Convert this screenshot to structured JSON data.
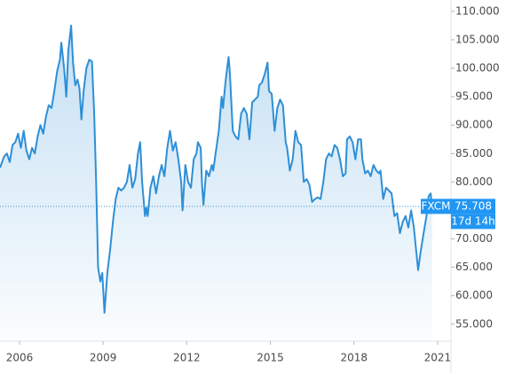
{
  "chart_data": {
    "type": "line",
    "x": [
      2005.3,
      2005.45,
      2005.55,
      2005.65,
      2005.75,
      2005.85,
      2005.95,
      2006.05,
      2006.15,
      2006.25,
      2006.35,
      2006.45,
      2006.55,
      2006.65,
      2006.75,
      2006.85,
      2006.95,
      2007.05,
      2007.15,
      2007.25,
      2007.35,
      2007.45,
      2007.5,
      2007.6,
      2007.68,
      2007.75,
      2007.85,
      2007.92,
      2008.0,
      2008.08,
      2008.15,
      2008.22,
      2008.3,
      2008.4,
      2008.5,
      2008.6,
      2008.68,
      2008.75,
      2008.82,
      2008.9,
      2008.97,
      2009.05,
      2009.15,
      2009.25,
      2009.35,
      2009.45,
      2009.55,
      2009.65,
      2009.75,
      2009.85,
      2009.95,
      2010.05,
      2010.15,
      2010.25,
      2010.33,
      2010.4,
      2010.5,
      2010.55,
      2010.6,
      2010.7,
      2010.8,
      2010.9,
      2011.0,
      2011.1,
      2011.2,
      2011.3,
      2011.4,
      2011.5,
      2011.6,
      2011.7,
      2011.8,
      2011.85,
      2011.95,
      2012.05,
      2012.15,
      2012.25,
      2012.35,
      2012.4,
      2012.5,
      2012.55,
      2012.6,
      2012.7,
      2012.8,
      2012.9,
      2012.95,
      2013.05,
      2013.15,
      2013.25,
      2013.3,
      2013.4,
      2013.5,
      2013.55,
      2013.65,
      2013.75,
      2013.85,
      2013.95,
      2014.05,
      2014.15,
      2014.25,
      2014.35,
      2014.45,
      2014.55,
      2014.6,
      2014.7,
      2014.8,
      2014.9,
      2014.95,
      2015.05,
      2015.15,
      2015.25,
      2015.35,
      2015.45,
      2015.55,
      2015.6,
      2015.7,
      2015.8,
      2015.9,
      2016.0,
      2016.1,
      2016.2,
      2016.3,
      2016.4,
      2016.5,
      2016.6,
      2016.7,
      2016.8,
      2016.9,
      2017.0,
      2017.1,
      2017.2,
      2017.3,
      2017.4,
      2017.5,
      2017.6,
      2017.7,
      2017.75,
      2017.85,
      2017.95,
      2018.05,
      2018.15,
      2018.25,
      2018.3,
      2018.4,
      2018.5,
      2018.6,
      2018.7,
      2018.8,
      2018.9,
      2018.95,
      2019.05,
      2019.15,
      2019.25,
      2019.35,
      2019.45,
      2019.55,
      2019.65,
      2019.75,
      2019.85,
      2019.95,
      2020.05,
      2020.15,
      2020.25,
      2020.3,
      2020.4,
      2020.5,
      2020.6,
      2020.68,
      2020.75,
      2020.8
    ],
    "series": [
      {
        "name": "FXCM",
        "color": "#2e8fd6",
        "values": [
          82.5,
          84.5,
          85,
          83.5,
          86.5,
          87,
          88.5,
          86,
          89,
          85.5,
          84,
          86,
          85,
          88,
          90,
          88.5,
          91.5,
          93.5,
          93,
          96,
          99.5,
          101.5,
          104.5,
          100,
          95,
          103,
          107.5,
          101,
          97,
          98,
          96.5,
          91,
          96,
          100,
          101.5,
          101.2,
          92,
          80,
          65,
          62.5,
          64,
          57,
          64,
          68,
          73,
          77,
          79,
          78.5,
          79,
          80,
          83,
          79,
          80.5,
          85,
          87,
          80,
          74,
          75.5,
          74,
          79,
          81,
          78,
          81,
          83,
          81,
          86,
          89,
          85.5,
          87,
          84,
          80,
          75,
          83,
          80,
          79,
          84,
          85,
          87,
          86,
          79.5,
          76,
          82,
          81,
          83,
          82,
          85.5,
          89,
          95,
          93,
          98,
          102,
          99,
          89,
          88,
          87.5,
          92,
          93,
          92,
          87.5,
          94,
          94.5,
          95,
          97,
          97.5,
          99,
          101,
          96,
          95.5,
          89,
          93,
          94.5,
          93.5,
          87,
          86,
          82,
          84,
          89,
          87,
          86.5,
          80,
          80.5,
          79.5,
          76.5,
          77,
          77.3,
          77,
          80,
          84,
          85,
          84.5,
          86.5,
          86,
          84,
          81,
          81.5,
          87.5,
          88,
          87,
          84,
          87.5,
          87.5,
          84,
          81.5,
          82,
          81,
          83,
          82,
          81.5,
          82,
          77,
          79,
          78.5,
          78,
          74,
          74.5,
          71,
          73,
          74,
          72,
          75,
          72,
          67,
          64.5,
          68,
          71,
          74,
          77.5,
          78,
          75.708
        ]
      }
    ],
    "xlim": [
      2005.3,
      2021.48
    ],
    "xticks": [
      2006,
      2009,
      2012,
      2015,
      2018,
      2021
    ],
    "ylim": [
      52,
      112
    ],
    "yticks": [
      {
        "value": 55,
        "label": "55.000"
      },
      {
        "value": 60,
        "label": "60.000"
      },
      {
        "value": 65,
        "label": "65.000"
      },
      {
        "value": 70,
        "label": "70.000"
      },
      {
        "value": 75,
        "label": "75.000"
      },
      {
        "value": 80,
        "label": "80.000"
      },
      {
        "value": 85,
        "label": "85.000"
      },
      {
        "value": 90,
        "label": "90.000"
      },
      {
        "value": 95,
        "label": "95.000"
      },
      {
        "value": 100,
        "label": "100.000"
      },
      {
        "value": 105,
        "label": "105.000"
      },
      {
        "value": 110,
        "label": "110.000"
      }
    ],
    "badge_color": "#2196f3",
    "countdown": "17d 14h"
  }
}
